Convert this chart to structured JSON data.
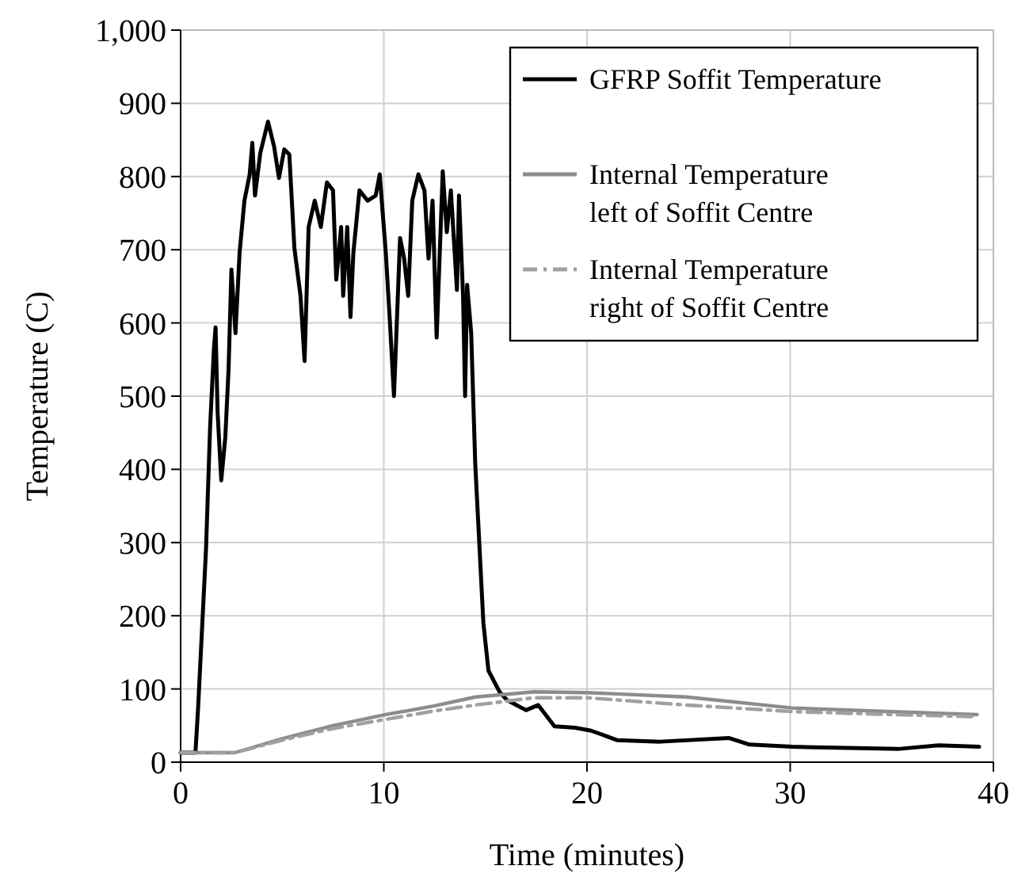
{
  "chart_data": {
    "type": "line",
    "xlabel": "Time (minutes)",
    "ylabel": "Temperature (C)",
    "xlim": [
      0,
      40
    ],
    "xticks": [
      0,
      10,
      20,
      30,
      40
    ],
    "ylim": [
      0,
      1000
    ],
    "yticks": [
      0,
      100,
      200,
      300,
      400,
      500,
      600,
      700,
      800,
      900,
      {
        "value": 1000,
        "label": "1,000"
      }
    ],
    "grid": true,
    "legend": "top right",
    "series": [
      {
        "name": "GFRP Soffit Temperature",
        "color": "#000000",
        "line_style": "solid",
        "x": [
          0,
          0.73,
          0.86,
          1.25,
          1.45,
          1.64,
          1.72,
          1.82,
          2.0,
          2.2,
          2.36,
          2.5,
          2.7,
          2.9,
          3.14,
          3.4,
          3.53,
          3.66,
          3.92,
          4.3,
          4.6,
          4.84,
          5.1,
          5.35,
          5.6,
          5.9,
          6.1,
          6.3,
          6.6,
          6.9,
          7.2,
          7.5,
          7.66,
          7.9,
          8.0,
          8.2,
          8.36,
          8.5,
          8.8,
          9.2,
          9.6,
          9.8,
          10.1,
          10.3,
          10.5,
          10.8,
          11.0,
          11.2,
          11.4,
          11.7,
          12.0,
          12.2,
          12.4,
          12.6,
          12.9,
          13.1,
          13.3,
          13.6,
          13.7,
          13.9,
          14.0,
          14.1,
          14.3,
          14.5,
          14.9,
          15.15,
          15.7,
          16.05,
          17.0,
          17.6,
          18.4,
          19.4,
          20.2,
          21.5,
          23.6,
          27.0,
          28.0,
          30.1,
          35.3,
          37.3,
          39.3
        ],
        "values": [
          13,
          13,
          74,
          291,
          457,
          565,
          594,
          478,
          385,
          444,
          537,
          673,
          586,
          695,
          767,
          803,
          846,
          774,
          832,
          875,
          841,
          798,
          837,
          830,
          702,
          637,
          548,
          731,
          767,
          731,
          792,
          781,
          659,
          731,
          637,
          731,
          608,
          695,
          781,
          767,
          774,
          803,
          695,
          601,
          500,
          716,
          688,
          637,
          767,
          803,
          781,
          688,
          767,
          580,
          807,
          724,
          781,
          645,
          774,
          637,
          500,
          652,
          586,
          407,
          190,
          125,
          96,
          85,
          71,
          78,
          49,
          47,
          43,
          30,
          28,
          33,
          24,
          21,
          18,
          23,
          21
        ]
      },
      {
        "name": "Internal Temperature left of Soffit Centre",
        "color": "#8c8c8c",
        "line_style": "solid",
        "x": [
          0,
          2.67,
          5,
          7.5,
          10.1,
          12.5,
          14.5,
          17.4,
          20,
          24.9,
          30.1,
          35,
          39.2
        ],
        "values": [
          13,
          13,
          32,
          50,
          65,
          77,
          89,
          96,
          95,
          89,
          74,
          69,
          65
        ]
      },
      {
        "name": "Internal Temperature right of Soffit Centre",
        "color": "#a0a0a0",
        "line_style": "dashed",
        "x": [
          0,
          2.67,
          5,
          7.5,
          10,
          12.5,
          14.5,
          17.4,
          20,
          24.9,
          30.1,
          35,
          39.2
        ],
        "values": [
          13,
          13,
          30,
          46,
          58,
          70,
          78,
          88,
          88,
          78,
          69,
          65,
          62
        ]
      }
    ]
  }
}
